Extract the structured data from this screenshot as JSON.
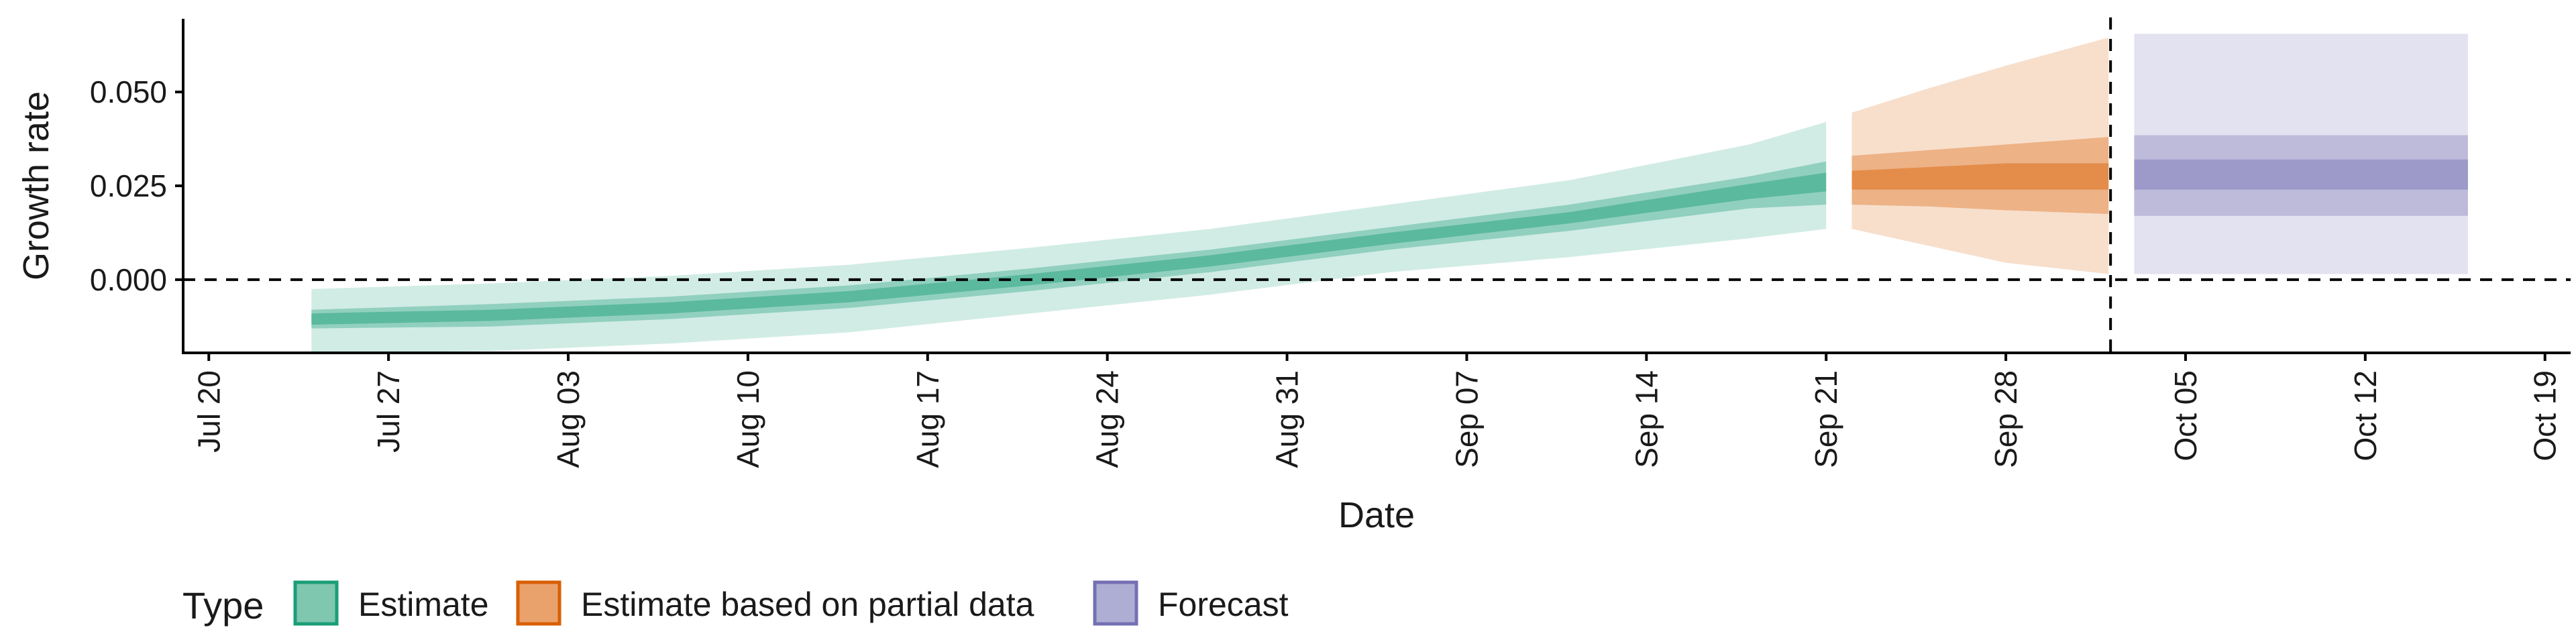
{
  "chart_data": {
    "type": "area",
    "title": "",
    "xlabel": "Date",
    "ylabel": "Growth rate",
    "x_range": [
      "2020-07-19",
      "2020-10-20"
    ],
    "y_range": [
      -0.0195,
      0.0695
    ],
    "x_ticks": [
      {
        "date": "2020-07-20",
        "label": "Jul 20"
      },
      {
        "date": "2020-07-27",
        "label": "Jul 27"
      },
      {
        "date": "2020-08-03",
        "label": "Aug 03"
      },
      {
        "date": "2020-08-10",
        "label": "Aug 10"
      },
      {
        "date": "2020-08-17",
        "label": "Aug 17"
      },
      {
        "date": "2020-08-24",
        "label": "Aug 24"
      },
      {
        "date": "2020-08-31",
        "label": "Aug 31"
      },
      {
        "date": "2020-09-07",
        "label": "Sep 07"
      },
      {
        "date": "2020-09-14",
        "label": "Sep 14"
      },
      {
        "date": "2020-09-21",
        "label": "Sep 21"
      },
      {
        "date": "2020-09-28",
        "label": "Sep 28"
      },
      {
        "date": "2020-10-05",
        "label": "Oct 05"
      },
      {
        "date": "2020-10-12",
        "label": "Oct 12"
      },
      {
        "date": "2020-10-19",
        "label": "Oct 19"
      }
    ],
    "y_ticks": [
      {
        "value": 0.0,
        "label": "0.000"
      },
      {
        "value": 0.025,
        "label": "0.025"
      },
      {
        "value": 0.05,
        "label": "0.050"
      }
    ],
    "reference_lines": {
      "horizontal": 0.0,
      "vertical": "2020-10-02"
    },
    "grid": false,
    "legend": {
      "title": "Type",
      "position": "bottom-left",
      "entries": [
        {
          "label": "Estimate",
          "fill": "#7fc7ae",
          "stroke": "#1b9e77"
        },
        {
          "label": "Estimate based on partial data",
          "fill": "#eaa26d",
          "stroke": "#d95f02"
        },
        {
          "label": "Forecast",
          "fill": "#aeaed4",
          "stroke": "#7570b3"
        }
      ]
    },
    "series": [
      {
        "type": "Estimate",
        "color": "#1b9e77",
        "points": [
          {
            "date": "2020-07-24",
            "median": -0.0105,
            "lower_20": -0.012,
            "upper_20": -0.009,
            "lower_50": -0.013,
            "upper_50": -0.008,
            "lower_90": -0.0195,
            "upper_90": -0.0025
          },
          {
            "date": "2020-07-31",
            "median": -0.0095,
            "lower_20": -0.011,
            "upper_20": -0.008,
            "lower_50": -0.0125,
            "upper_50": -0.0065,
            "lower_90": -0.019,
            "upper_90": -0.001
          },
          {
            "date": "2020-08-07",
            "median": -0.0075,
            "lower_20": -0.009,
            "upper_20": -0.006,
            "lower_50": -0.0105,
            "upper_50": -0.0045,
            "lower_90": -0.017,
            "upper_90": 0.001
          },
          {
            "date": "2020-08-14",
            "median": -0.0045,
            "lower_20": -0.006,
            "upper_20": -0.003,
            "lower_50": -0.0075,
            "upper_50": -0.0015,
            "lower_90": -0.014,
            "upper_90": 0.004
          },
          {
            "date": "2020-08-21",
            "median": 0.0,
            "lower_20": -0.0015,
            "upper_20": 0.0015,
            "lower_50": -0.003,
            "upper_50": 0.003,
            "lower_90": -0.009,
            "upper_90": 0.0085
          },
          {
            "date": "2020-08-28",
            "median": 0.005,
            "lower_20": 0.0035,
            "upper_20": 0.0065,
            "lower_50": 0.002,
            "upper_50": 0.008,
            "lower_90": -0.004,
            "upper_90": 0.0135
          },
          {
            "date": "2020-09-04",
            "median": 0.011,
            "lower_20": 0.0095,
            "upper_20": 0.0125,
            "lower_50": 0.008,
            "upper_50": 0.014,
            "lower_90": 0.002,
            "upper_90": 0.02
          },
          {
            "date": "2020-09-11",
            "median": 0.0165,
            "lower_20": 0.015,
            "upper_20": 0.018,
            "lower_50": 0.013,
            "upper_50": 0.02,
            "lower_90": 0.006,
            "upper_90": 0.0265
          },
          {
            "date": "2020-09-18",
            "median": 0.0235,
            "lower_20": 0.0215,
            "upper_20": 0.0255,
            "lower_50": 0.019,
            "upper_50": 0.0275,
            "lower_90": 0.011,
            "upper_90": 0.036
          },
          {
            "date": "2020-09-21",
            "median": 0.026,
            "lower_20": 0.0235,
            "upper_20": 0.0285,
            "lower_50": 0.02,
            "upper_50": 0.0315,
            "lower_90": 0.0135,
            "upper_90": 0.042
          }
        ]
      },
      {
        "type": "Estimate based on partial data",
        "color": "#d95f02",
        "points": [
          {
            "date": "2020-09-22",
            "median": 0.0265,
            "lower_20": 0.024,
            "upper_20": 0.029,
            "lower_50": 0.02,
            "upper_50": 0.033,
            "lower_90": 0.0135,
            "upper_90": 0.0445
          },
          {
            "date": "2020-09-25",
            "median": 0.027,
            "lower_20": 0.024,
            "upper_20": 0.03,
            "lower_50": 0.0195,
            "upper_50": 0.0345,
            "lower_90": 0.009,
            "upper_90": 0.051
          },
          {
            "date": "2020-09-28",
            "median": 0.0275,
            "lower_20": 0.024,
            "upper_20": 0.031,
            "lower_50": 0.0185,
            "upper_50": 0.036,
            "lower_90": 0.0045,
            "upper_90": 0.057
          },
          {
            "date": "2020-10-02",
            "median": 0.0275,
            "lower_20": 0.024,
            "upper_20": 0.031,
            "lower_50": 0.0175,
            "upper_50": 0.038,
            "lower_90": 0.0015,
            "upper_90": 0.0645
          }
        ]
      },
      {
        "type": "Forecast",
        "color": "#7570b3",
        "points": [
          {
            "date": "2020-10-03",
            "median": 0.028,
            "lower_20": 0.024,
            "upper_20": 0.032,
            "lower_50": 0.017,
            "upper_50": 0.0385,
            "lower_90": 0.0015,
            "upper_90": 0.0655
          },
          {
            "date": "2020-10-16",
            "median": 0.028,
            "lower_20": 0.024,
            "upper_20": 0.032,
            "lower_50": 0.017,
            "upper_50": 0.0385,
            "lower_90": 0.0015,
            "upper_90": 0.0655
          }
        ]
      }
    ]
  }
}
